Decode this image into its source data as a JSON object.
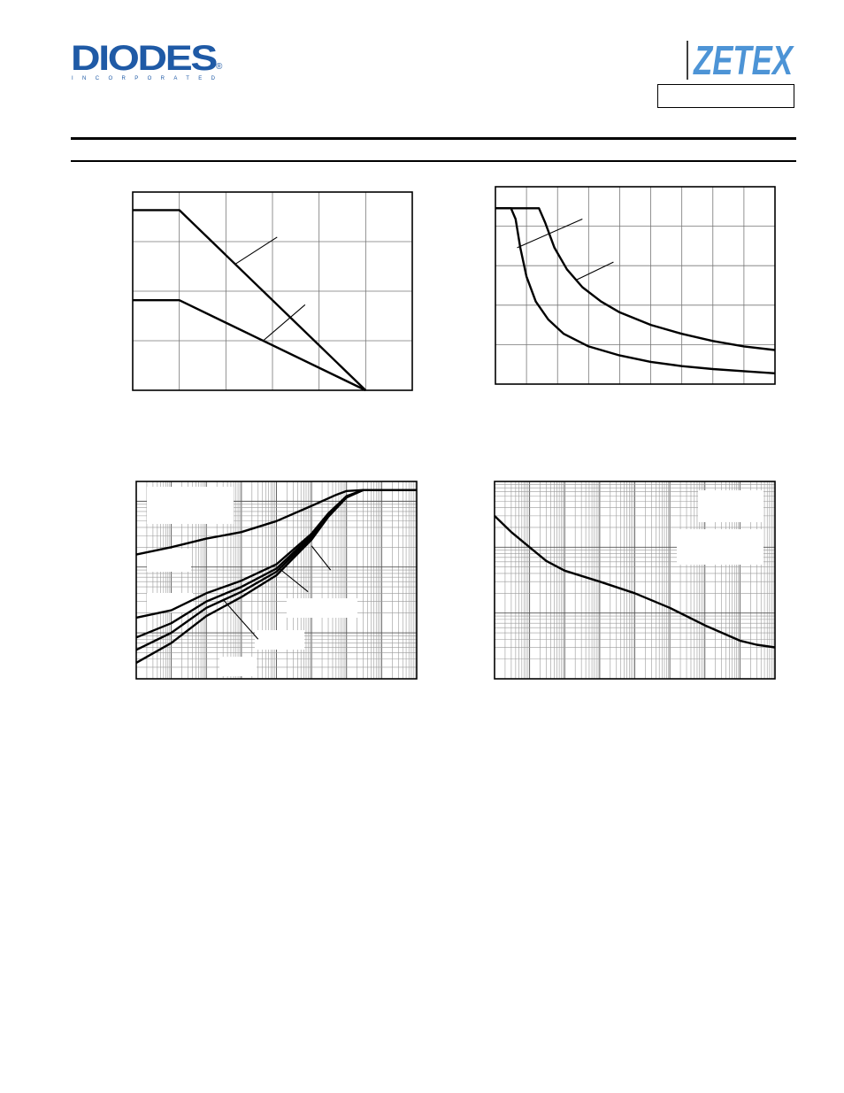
{
  "header": {
    "left_logo": {
      "text": "DIODES",
      "subtext": "INCORPORATED",
      "mark": "®",
      "color": "#1f5aa6"
    },
    "right_logo": {
      "text": "ZETEX",
      "color": "#4d94d6"
    },
    "part_box_text": ""
  },
  "chart_data": [
    {
      "type": "line",
      "grid": true,
      "xlim": [
        0,
        6
      ],
      "ylim": [
        0,
        4.4
      ],
      "series": [
        {
          "values": [
            [
              0,
              4.0
            ],
            [
              1,
              4.0
            ],
            [
              5,
              0.0
            ]
          ]
        },
        {
          "values": [
            [
              0,
              2.0
            ],
            [
              1,
              2.0
            ],
            [
              5,
              0.0
            ]
          ]
        }
      ],
      "annotations": [
        {
          "from": [
            3.1,
            3.4
          ],
          "to": [
            2.2,
            2.8
          ]
        },
        {
          "from": [
            3.7,
            1.9
          ],
          "to": [
            2.8,
            1.1
          ]
        }
      ]
    },
    {
      "type": "line",
      "grid": true,
      "xlim": [
        0,
        9
      ],
      "ylim": [
        0,
        5.5
      ],
      "series": [
        {
          "values": [
            [
              0,
              4.9
            ],
            [
              0.5,
              4.9
            ],
            [
              0.65,
              4.6
            ],
            [
              0.8,
              3.8
            ],
            [
              1,
              3.0
            ],
            [
              1.3,
              2.3
            ],
            [
              1.7,
              1.8
            ],
            [
              2.2,
              1.4
            ],
            [
              3,
              1.05
            ],
            [
              4,
              0.8
            ],
            [
              5,
              0.62
            ],
            [
              6,
              0.5
            ],
            [
              7,
              0.42
            ],
            [
              8,
              0.36
            ],
            [
              9,
              0.3
            ]
          ]
        },
        {
          "values": [
            [
              0,
              4.9
            ],
            [
              1.4,
              4.9
            ],
            [
              1.6,
              4.5
            ],
            [
              1.9,
              3.8
            ],
            [
              2.3,
              3.2
            ],
            [
              2.8,
              2.7
            ],
            [
              3.4,
              2.3
            ],
            [
              4,
              2.0
            ],
            [
              5,
              1.65
            ],
            [
              6,
              1.4
            ],
            [
              7,
              1.2
            ],
            [
              8,
              1.05
            ],
            [
              9,
              0.95
            ]
          ]
        }
      ],
      "annotations": [
        {
          "from": [
            2.8,
            4.6
          ],
          "to": [
            0.7,
            3.8
          ]
        },
        {
          "from": [
            3.8,
            3.4
          ],
          "to": [
            2.6,
            2.9
          ]
        }
      ]
    },
    {
      "type": "line",
      "grid": true,
      "xscale": "log",
      "yscale": "log",
      "xlim": [
        1e-06,
        100
      ],
      "ylim": [
        0.02,
        20
      ],
      "series": [
        {
          "values": [
            [
              1e-06,
              1.55
            ],
            [
              1e-05,
              2.0
            ],
            [
              0.0001,
              2.7
            ],
            [
              0.001,
              3.4
            ],
            [
              0.01,
              5.0
            ],
            [
              0.1,
              8.5
            ],
            [
              0.5,
              12.5
            ],
            [
              1,
              14.3
            ],
            [
              3,
              14.8
            ],
            [
              10,
              14.8
            ],
            [
              100,
              14.8
            ]
          ]
        },
        {
          "values": [
            [
              1e-06,
              0.17
            ],
            [
              1e-05,
              0.22
            ],
            [
              0.0001,
              0.4
            ],
            [
              0.001,
              0.62
            ],
            [
              0.01,
              1.1
            ],
            [
              0.1,
              3.2
            ],
            [
              0.3,
              6.5
            ],
            [
              1,
              12.0
            ],
            [
              3,
              14.8
            ],
            [
              100,
              14.8
            ]
          ]
        },
        {
          "values": [
            [
              1e-06,
              0.085
            ],
            [
              1e-05,
              0.14
            ],
            [
              0.0001,
              0.3
            ],
            [
              0.001,
              0.5
            ],
            [
              0.01,
              0.95
            ],
            [
              0.1,
              3.0
            ],
            [
              0.3,
              6.2
            ],
            [
              1,
              11.8
            ],
            [
              3,
              14.8
            ],
            [
              100,
              14.8
            ]
          ]
        },
        {
          "values": [
            [
              1e-06,
              0.055
            ],
            [
              1e-05,
              0.1
            ],
            [
              0.0001,
              0.24
            ],
            [
              0.001,
              0.42
            ],
            [
              0.01,
              0.85
            ],
            [
              0.1,
              2.8
            ],
            [
              0.3,
              6.0
            ],
            [
              1,
              11.6
            ],
            [
              3,
              14.8
            ],
            [
              100,
              14.8
            ]
          ]
        },
        {
          "values": [
            [
              1e-06,
              0.035
            ],
            [
              1e-05,
              0.07
            ],
            [
              0.0001,
              0.18
            ],
            [
              0.001,
              0.35
            ],
            [
              0.01,
              0.75
            ],
            [
              0.1,
              2.6
            ],
            [
              0.3,
              5.8
            ],
            [
              1,
              11.4
            ],
            [
              3,
              14.8
            ],
            [
              100,
              14.8
            ]
          ]
        }
      ],
      "annotations": [
        {
          "from": [
            0.35,
            0.9
          ],
          "to": [
            0.1,
            2.1
          ]
        },
        {
          "from": [
            0.08,
            0.42
          ],
          "to": [
            0.012,
            0.95
          ]
        },
        {
          "from": [
            0.003,
            0.08
          ],
          "to": [
            0.0003,
            0.32
          ]
        }
      ]
    },
    {
      "type": "line",
      "grid": true,
      "xscale": "log",
      "yscale": "log",
      "xlim": [
        1e-06,
        100
      ],
      "ylim": [
        1,
        1000
      ],
      "series": [
        {
          "values": [
            [
              1e-06,
              300
            ],
            [
              3e-06,
              170
            ],
            [
              1e-05,
              100
            ],
            [
              3e-05,
              62
            ],
            [
              0.0001,
              44
            ],
            [
              0.001,
              30
            ],
            [
              0.01,
              20
            ],
            [
              0.1,
              12
            ],
            [
              1,
              6.5
            ],
            [
              10,
              3.8
            ],
            [
              30,
              3.3
            ],
            [
              100,
              3.0
            ]
          ]
        }
      ]
    }
  ]
}
